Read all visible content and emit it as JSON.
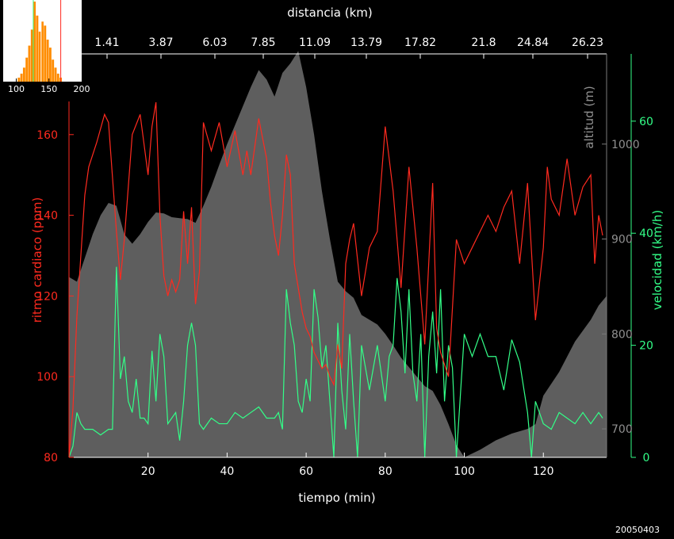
{
  "footer_date": "20050403",
  "colors": {
    "background": "#000000",
    "heart_rate": "#ff2a1f",
    "altitude": "#5e5e5e",
    "speed": "#33ff88",
    "text": "#ffffff",
    "histogram": "#ff8c00"
  },
  "chart_data": [
    {
      "type": "line",
      "xlabel": "tiempo (min)",
      "x2label": "distancia (km)",
      "ylabel_left": "ritmo cardiaco (ppm)",
      "ylabel_right1": "altitud (m)",
      "ylabel_right2": "velocidad (km/h)",
      "xlim": [
        0,
        136
      ],
      "x_ticks": [
        20,
        40,
        60,
        80,
        100,
        120
      ],
      "x2_tick_labels": [
        "1.41",
        "3.87",
        "6.03",
        "7.85",
        "11.09",
        "13.79",
        "17.82",
        "21.8",
        "24.84",
        "26.23"
      ],
      "ylim_left": [
        80,
        180
      ],
      "y_ticks_left": [
        80,
        100,
        120,
        140,
        160
      ],
      "ylim_altitude": [
        670,
        1095
      ],
      "y_ticks_altitude": [
        700,
        800,
        900,
        1000
      ],
      "ylim_speed": [
        0,
        72
      ],
      "y_ticks_speed": [
        0,
        20,
        40,
        60
      ],
      "grid": false,
      "series": [
        {
          "name": "ritmo cardiaco (ppm)",
          "type": "line",
          "x": [
            0,
            1,
            2,
            3,
            4,
            5,
            7,
            9,
            10,
            12,
            13,
            14,
            16,
            18,
            20,
            21,
            22,
            23,
            24,
            25,
            26,
            27,
            28,
            29,
            30,
            31,
            32,
            33,
            34,
            36,
            38,
            40,
            42,
            44,
            45,
            46,
            48,
            50,
            51,
            52,
            53,
            54,
            55,
            56,
            57,
            58,
            59,
            60,
            61,
            62,
            63,
            64,
            65,
            66,
            67,
            68,
            69,
            70,
            71,
            72,
            74,
            76,
            78,
            80,
            81,
            82,
            84,
            86,
            88,
            90,
            92,
            93,
            94,
            96,
            98,
            100,
            102,
            104,
            106,
            108,
            110,
            112,
            114,
            116,
            118,
            120,
            121,
            122,
            124,
            126,
            128,
            130,
            132,
            133,
            134,
            135
          ],
          "values": [
            80,
            92,
            115,
            130,
            145,
            152,
            158,
            165,
            163,
            136,
            124,
            134,
            160,
            165,
            150,
            162,
            168,
            140,
            125,
            120,
            124,
            121,
            124,
            141,
            128,
            142,
            118,
            126,
            163,
            156,
            163,
            152,
            161,
            150,
            156,
            150,
            164,
            154,
            143,
            135,
            130,
            140,
            155,
            150,
            128,
            122,
            116,
            112,
            110,
            106,
            104,
            102,
            103,
            100,
            98,
            108,
            102,
            128,
            134,
            138,
            120,
            132,
            136,
            162,
            154,
            146,
            122,
            152,
            132,
            108,
            148,
            112,
            106,
            100,
            134,
            128,
            132,
            136,
            140,
            136,
            142,
            146,
            128,
            148,
            114,
            132,
            152,
            144,
            140,
            154,
            140,
            147,
            150,
            128,
            140,
            135
          ]
        },
        {
          "name": "altitud (m)",
          "type": "area",
          "x": [
            0,
            2,
            4,
            6,
            8,
            10,
            12,
            14,
            16,
            18,
            20,
            22,
            24,
            26,
            28,
            30,
            32,
            34,
            36,
            38,
            40,
            42,
            44,
            46,
            48,
            50,
            52,
            54,
            56,
            58,
            60,
            62,
            64,
            66,
            68,
            70,
            72,
            74,
            76,
            78,
            80,
            82,
            84,
            86,
            88,
            90,
            92,
            94,
            96,
            98,
            100,
            104,
            108,
            112,
            116,
            118,
            120,
            124,
            128,
            132,
            134,
            136
          ],
          "values": [
            860,
            855,
            880,
            905,
            925,
            938,
            935,
            905,
            895,
            905,
            918,
            928,
            927,
            923,
            922,
            921,
            917,
            935,
            955,
            978,
            1000,
            1020,
            1040,
            1060,
            1078,
            1068,
            1050,
            1075,
            1085,
            1098,
            1060,
            1010,
            950,
            900,
            855,
            845,
            838,
            820,
            815,
            810,
            800,
            788,
            775,
            765,
            755,
            745,
            740,
            725,
            705,
            683,
            670,
            678,
            688,
            695,
            700,
            705,
            735,
            760,
            792,
            815,
            830,
            840
          ]
        },
        {
          "name": "velocidad (km/h)",
          "type": "line",
          "x": [
            0,
            1,
            2,
            3,
            4,
            6,
            8,
            10,
            11,
            12,
            13,
            14,
            15,
            16,
            17,
            18,
            19,
            20,
            21,
            22,
            23,
            24,
            25,
            26,
            27,
            28,
            29,
            30,
            31,
            32,
            33,
            34,
            36,
            38,
            40,
            42,
            44,
            46,
            48,
            50,
            52,
            53,
            54,
            55,
            56,
            57,
            58,
            59,
            60,
            61,
            62,
            63,
            64,
            65,
            66,
            67,
            68,
            69,
            70,
            71,
            72,
            73,
            74,
            76,
            78,
            80,
            81,
            82,
            83,
            84,
            85,
            86,
            87,
            88,
            89,
            90,
            91,
            92,
            93,
            94,
            95,
            96,
            97,
            98,
            100,
            102,
            104,
            106,
            108,
            110,
            112,
            114,
            116,
            117,
            118,
            120,
            122,
            124,
            126,
            128,
            130,
            132,
            134,
            135
          ],
          "values": [
            0,
            2,
            8,
            6,
            5,
            5,
            4,
            5,
            5,
            34,
            14,
            18,
            10,
            8,
            14,
            7,
            7,
            6,
            19,
            10,
            22,
            18,
            6,
            7,
            8,
            3,
            10,
            20,
            24,
            20,
            6,
            5,
            7,
            6,
            6,
            8,
            7,
            8,
            9,
            7,
            7,
            8,
            5,
            30,
            24,
            20,
            10,
            8,
            14,
            10,
            30,
            25,
            16,
            20,
            10,
            0,
            24,
            12,
            5,
            22,
            10,
            0,
            20,
            12,
            20,
            10,
            18,
            20,
            32,
            26,
            15,
            30,
            15,
            10,
            22,
            0,
            18,
            26,
            15,
            30,
            10,
            20,
            16,
            0,
            22,
            18,
            22,
            18,
            18,
            12,
            21,
            17,
            8,
            0,
            10,
            6,
            5,
            8,
            7,
            6,
            8,
            6,
            8,
            7
          ]
        }
      ]
    },
    {
      "type": "bar",
      "name": "heart rate histogram inset",
      "xlim": [
        80,
        200
      ],
      "x_tick_labels": [
        "100",
        "150",
        "200"
      ],
      "categories": [
        104,
        108,
        112,
        116,
        120,
        124,
        128,
        132,
        136,
        140,
        144,
        148,
        152,
        156,
        160,
        164,
        168
      ],
      "values": [
        2,
        4,
        7,
        12,
        18,
        26,
        40,
        33,
        25,
        30,
        28,
        21,
        17,
        11,
        7,
        4,
        2
      ],
      "markers": [
        {
          "x": 126,
          "color": "#33ff88"
        },
        {
          "x": 138,
          "color": "#ffffff"
        },
        {
          "x": 168,
          "color": "#ff2a1f"
        }
      ]
    }
  ]
}
